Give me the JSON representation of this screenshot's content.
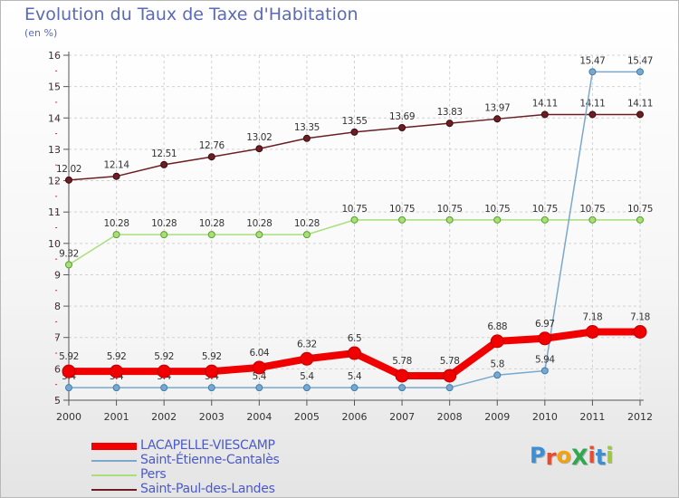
{
  "chart_data": {
    "type": "line",
    "title": "Evolution du Taux de Taxe d'Habitation",
    "subtitle": "(en %)",
    "categories": [
      "2000",
      "2001",
      "2002",
      "2003",
      "2004",
      "2005",
      "2006",
      "2007",
      "2008",
      "2009",
      "2010",
      "2011",
      "2012"
    ],
    "ylim": [
      5,
      16
    ],
    "yticks": [
      5,
      6,
      7,
      8,
      9,
      10,
      11,
      12,
      13,
      14,
      15,
      16
    ],
    "grid": true,
    "legend_position": "bottom-left",
    "series": [
      {
        "name": "Saint-Paul-des-Landes",
        "color": "#6b1f24",
        "values": [
          12.02,
          12.14,
          12.51,
          12.76,
          13.02,
          13.35,
          13.55,
          13.69,
          13.83,
          13.97,
          14.11,
          14.11,
          14.11
        ],
        "labels": [
          "12.02",
          "12.14",
          "12.51",
          "12.76",
          "13.02",
          "13.35",
          "13.55",
          "13.69",
          "13.83",
          "13.97",
          "14.11",
          "14.11",
          "14.11"
        ]
      },
      {
        "name": "Pers",
        "color": "#a8df7a",
        "values": [
          9.32,
          10.28,
          10.28,
          10.28,
          10.28,
          10.28,
          10.75,
          10.75,
          10.75,
          10.75,
          10.75,
          10.75,
          10.75
        ],
        "labels": [
          "9.32",
          "10.28",
          "10.28",
          "10.28",
          "10.28",
          "10.28",
          "10.75",
          "10.75",
          "10.75",
          "10.75",
          "10.75",
          "10.75",
          "10.75"
        ]
      },
      {
        "name": "Saint-Étienne-Cantalès",
        "color": "#7aa8cc",
        "values": [
          5.4,
          5.4,
          5.4,
          5.4,
          5.4,
          5.4,
          5.4,
          5.4,
          5.4,
          5.8,
          5.94,
          15.47,
          15.47
        ],
        "labels": [
          "5.4",
          "5.4",
          "5.4",
          "5.4",
          "5.4",
          "5.4",
          "5.4",
          "5.4",
          "5.4",
          "5.8",
          "5.94",
          "15.47",
          "15.47"
        ]
      },
      {
        "name": "LACAPELLE-VIESCAMP",
        "color": "#f00000",
        "values": [
          5.92,
          5.92,
          5.92,
          5.92,
          6.04,
          6.32,
          6.5,
          5.78,
          5.78,
          6.88,
          6.97,
          7.18,
          7.18
        ],
        "labels": [
          "5.92",
          "5.92",
          "5.92",
          "5.92",
          "6.04",
          "6.32",
          "6.5",
          "5.78",
          "5.78",
          "6.88",
          "6.97",
          "7.18",
          "7.18"
        ]
      }
    ],
    "legend": [
      {
        "name": "LACAPELLE-VIESCAMP",
        "color": "#f00000"
      },
      {
        "name": "Saint-Étienne-Cantalès",
        "color": "#7aa8cc"
      },
      {
        "name": "Pers",
        "color": "#a8df7a"
      },
      {
        "name": "Saint-Paul-des-Landes",
        "color": "#6b1f24"
      }
    ]
  },
  "logo": {
    "text": "ProXiti",
    "letters": [
      "P",
      "r",
      "o",
      "X",
      "i",
      "t",
      "i"
    ],
    "colors": [
      "#3b8fd6",
      "#e94c2c",
      "#f4a20c",
      "#2fa84f",
      "#e94c2c",
      "#3b8fd6",
      "#9fc93c"
    ]
  }
}
